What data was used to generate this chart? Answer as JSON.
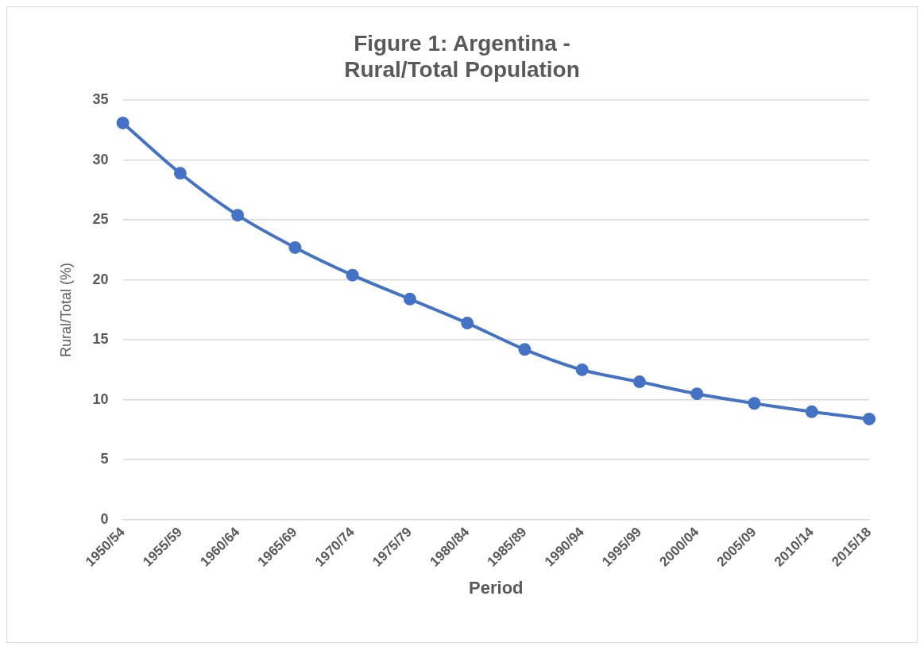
{
  "chart_data": {
    "type": "line",
    "title": [
      "Figure 1: Argentina -",
      "Rural/Total Population"
    ],
    "xlabel": "Period",
    "ylabel": "Rural/Total (%)",
    "categories": [
      "1950/54",
      "1955/59",
      "1960/64",
      "1965/69",
      "1970/74",
      "1975/79",
      "1980/84",
      "1985/89",
      "1990/94",
      "1995/99",
      "2000/04",
      "2005/09",
      "2010/14",
      "2015/18"
    ],
    "series": [
      {
        "color": "#4472c4",
        "values": [
          33.1,
          28.9,
          25.4,
          22.7,
          20.4,
          18.4,
          16.4,
          14.2,
          12.5,
          11.5,
          10.5,
          9.7,
          9.0,
          8.4
        ]
      }
    ],
    "ylim": [
      0,
      35
    ],
    "yticks": [
      0,
      5,
      10,
      15,
      20,
      25,
      30,
      35
    ],
    "grid": "y",
    "legend": false,
    "marker": "circle",
    "line_style": "solid"
  }
}
